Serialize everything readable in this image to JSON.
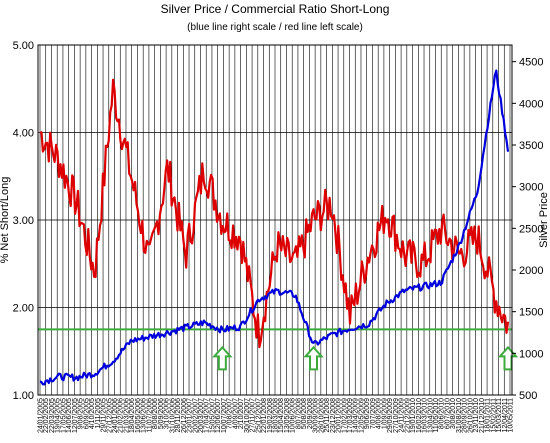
{
  "chart_data": {
    "type": "line",
    "title": "Silver Price / Commercial Ratio Short-Long",
    "subtitle": "(blue line right scale / red line left scale)",
    "ylabel_left": "% Net Short/Long",
    "ylabel_right": "Silver Price",
    "ylim_left": [
      1.0,
      5.0
    ],
    "ylim_right": [
      500,
      4700
    ],
    "yticks_left": [
      "1.00",
      "2.00",
      "3.00",
      "4.00",
      "5.00"
    ],
    "yticks_right": [
      "500",
      "1000",
      "1500",
      "2000",
      "2500",
      "3000",
      "3500",
      "4000",
      "4500"
    ],
    "xticks": [
      "24/01/2005",
      "22/02/2005",
      "22/03/2005",
      "19/04/2005",
      "17/05/2005",
      "14/06/2005",
      "12/07/2005",
      "9/08/2005",
      "6/09/2005",
      "4/10/2005",
      "1/11/2005",
      "29/11/2005",
      "27/12/2005",
      "24/01/2006",
      "21/02/2006",
      "21/03/2006",
      "18/04/2006",
      "16/05/2006",
      "13/06/2006",
      "11/07/2006",
      "8/08/2006",
      "5/09/2006",
      "3/10/2006",
      "31/10/2006",
      "28/11/2006",
      "26/12/2006",
      "23/01/2007",
      "20/02/2007",
      "20/03/2007",
      "17/04/2007",
      "15/05/2007",
      "12/06/2007",
      "10/07/2007",
      "7/08/2007",
      "4/09/2007",
      "2/10/2007",
      "30/10/2007",
      "27/11/2007",
      "25/12/2007",
      "22/01/2008",
      "19/02/2008",
      "18/03/2008",
      "15/04/2008",
      "13/05/2008",
      "10/06/2008",
      "8/07/2008",
      "5/08/2008",
      "2/09/2008",
      "30/09/2008",
      "28/10/2008",
      "25/11/2008",
      "23/12/2008",
      "20/01/2009",
      "17/02/2009",
      "17/03/2009",
      "14/04/2009",
      "12/05/2009",
      "9/06/2009",
      "7/07/2009",
      "4/08/2009",
      "1/09/2009",
      "29/09/2009",
      "27/10/2009",
      "24/11/2009",
      "22/12/2009",
      "19/01/2010",
      "16/02/2010",
      "16/03/2010",
      "13/04/2010",
      "11/05/2010",
      "8/06/2010",
      "6/07/2010",
      "3/08/2010",
      "31/08/2010",
      "28/09/2010",
      "26/10/2010",
      "23/11/2010",
      "21/12/2010",
      "18/01/2011",
      "15/02/2011",
      "15/03/2011",
      "12/04/2011",
      "10/05/2011"
    ],
    "x": [
      "2005-01",
      "2005-04",
      "2005-07",
      "2005-10",
      "2006-01",
      "2006-04",
      "2006-07",
      "2006-10",
      "2007-01",
      "2007-04",
      "2007-07",
      "2007-10",
      "2008-01",
      "2008-04",
      "2008-07",
      "2008-10",
      "2009-01",
      "2009-04",
      "2009-07",
      "2009-10",
      "2010-01",
      "2010-04",
      "2010-07",
      "2010-10",
      "2011-01",
      "2011-04",
      "2011-06"
    ],
    "series": [
      {
        "color": "#dd0000",
        "axis": "left",
        "values": [
          4.0,
          3.7,
          3.2,
          2.4,
          4.5,
          3.5,
          2.5,
          3.6,
          2.6,
          3.6,
          3.0,
          2.8,
          1.7,
          2.7,
          2.5,
          3.0,
          3.2,
          1.9,
          2.6,
          3.1,
          2.6,
          2.5,
          2.9,
          2.6,
          2.8,
          2.1,
          1.8
        ],
        "noise": 0.22
      },
      {
        "color": "#0000dd",
        "axis": "right",
        "values": [
          650,
          720,
          710,
          760,
          910,
          1150,
          1200,
          1250,
          1310,
          1370,
          1280,
          1320,
          1650,
          1750,
          1700,
          1100,
          1220,
          1300,
          1350,
          1600,
          1750,
          1800,
          1850,
          2300,
          2950,
          4400,
          3450
        ],
        "noise": 40
      }
    ],
    "reference_line": {
      "color": "#3caa3c",
      "value_left": 1.75
    },
    "annotations": [
      {
        "type": "up-arrow",
        "x": "2007-07",
        "color": "#3caa3c"
      },
      {
        "type": "up-arrow",
        "x": "2008-10",
        "color": "#3caa3c"
      },
      {
        "type": "up-arrow",
        "x": "2011-06",
        "color": "#3caa3c"
      }
    ],
    "grid": true,
    "legend": "none"
  }
}
